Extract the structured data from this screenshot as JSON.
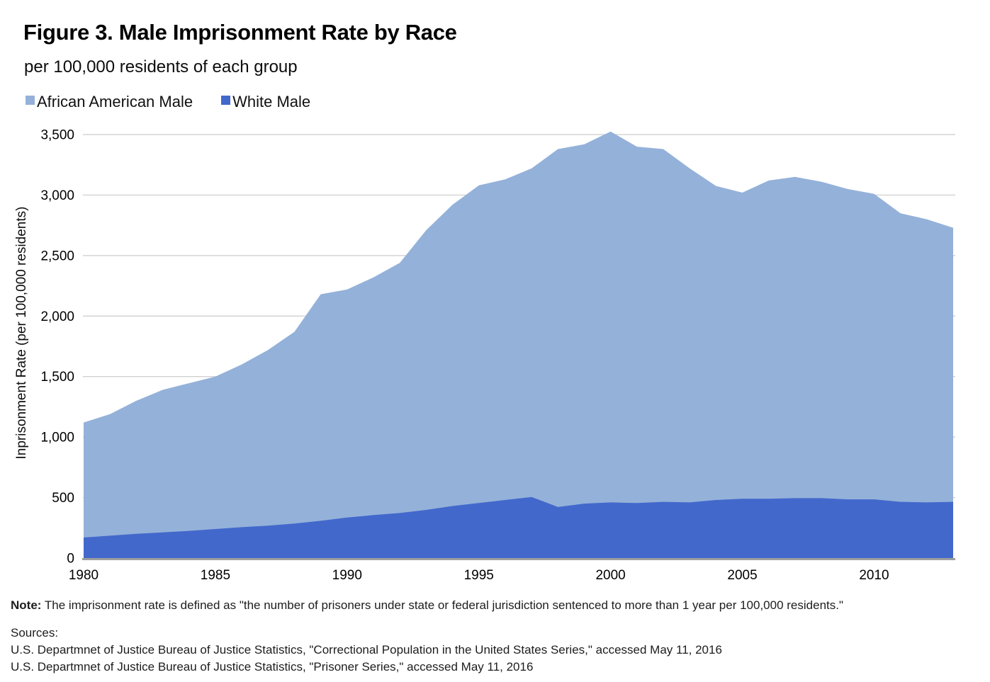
{
  "figure": {
    "title": "Figure 3. Male Imprisonment Rate by Race",
    "subtitle": "per 100,000 residents of each group",
    "note_label": "Note:",
    "note_text": " The imprisonment rate is defined as \"the number of prisoners under state or federal jurisdiction sentenced to more than 1 year per 100,000 residents.\"",
    "sources_label": "Sources:",
    "sources": [
      "U.S. Departmnet of Justice Bureau of Justice Statistics, \"Correctional Population in the United States Series,\" accessed May 11, 2016",
      "U.S. Departmnet of Justice Bureau of Justice Statistics, \"Prisoner Series,\" accessed May 11, 2016"
    ]
  },
  "chart_data": {
    "type": "area",
    "title": "Figure 3. Male Imprisonment Rate by Race",
    "subtitle": "per 100,000 residents of each group",
    "xlabel": "",
    "ylabel": "Inprisonment Rate (per 100,000 residents)",
    "ylim": [
      0,
      3500
    ],
    "ytick_values": [
      0,
      500,
      1000,
      1500,
      2000,
      2500,
      3000,
      3500
    ],
    "ytick_labels": [
      "0",
      "500",
      "1,000",
      "1,500",
      "2,000",
      "2,500",
      "3,000",
      "3,500"
    ],
    "xlim": [
      1980,
      2013
    ],
    "xtick_values": [
      1980,
      1985,
      1990,
      1995,
      2000,
      2005,
      2010
    ],
    "xtick_labels": [
      "1980",
      "1985",
      "1990",
      "1995",
      "2000",
      "2005",
      "2010"
    ],
    "grid": true,
    "legend_position": "top-left",
    "overlap_mode": "layered-not-stacked",
    "x": [
      1980,
      1981,
      1982,
      1983,
      1984,
      1985,
      1986,
      1987,
      1988,
      1989,
      1990,
      1991,
      1992,
      1993,
      1994,
      1995,
      1996,
      1997,
      1998,
      1999,
      2000,
      2001,
      2002,
      2003,
      2004,
      2005,
      2006,
      2007,
      2008,
      2009,
      2010,
      2011,
      2012,
      2013
    ],
    "series": [
      {
        "name": "African American Male",
        "color": "#94B1D9",
        "values": [
          1120,
          1190,
          1300,
          1390,
          1445,
          1500,
          1600,
          1720,
          1870,
          2180,
          2220,
          2320,
          2440,
          2710,
          2920,
          3080,
          3130,
          3220,
          3380,
          3420,
          3525,
          3400,
          3380,
          3220,
          3075,
          3020,
          3120,
          3150,
          3110,
          3050,
          3010,
          2850,
          2800,
          2730
        ]
      },
      {
        "name": "White Male",
        "color": "#4368CC",
        "values": [
          170,
          185,
          200,
          212,
          225,
          240,
          255,
          268,
          285,
          308,
          335,
          355,
          372,
          398,
          430,
          455,
          480,
          505,
          422,
          450,
          460,
          455,
          465,
          460,
          480,
          490,
          490,
          495,
          495,
          485,
          485,
          465,
          460,
          465
        ]
      }
    ],
    "colors": {
      "gridline": "#cccccc",
      "axis_line": "#9e9e9e",
      "tick_text": "#000000",
      "background": "#ffffff"
    }
  }
}
